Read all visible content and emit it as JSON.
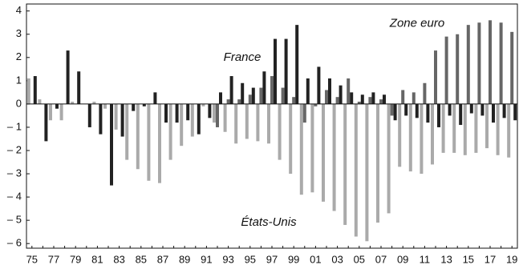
{
  "chart_data": {
    "type": "bar",
    "categories": [
      "75",
      null,
      "77",
      null,
      "79",
      null,
      "81",
      null,
      "83",
      null,
      "85",
      null,
      "87",
      null,
      "89",
      null,
      "91",
      null,
      "93",
      null,
      "95",
      null,
      "97",
      null,
      "99",
      null,
      "01",
      null,
      "03",
      null,
      "05",
      null,
      "07",
      null,
      "09",
      null,
      "11",
      null,
      "13",
      null,
      "15",
      null,
      "17",
      null,
      "19"
    ],
    "series": [
      {
        "name": "États-Unis",
        "color": "#aaaaaa",
        "values": [
          1.1,
          0.2,
          -0.7,
          -0.7,
          0.1,
          0.0,
          0.1,
          -0.2,
          -1.1,
          -2.4,
          -2.8,
          -3.3,
          -3.4,
          -2.4,
          -1.8,
          -1.4,
          -0.1,
          -0.8,
          -1.2,
          -1.7,
          -1.5,
          -1.6,
          -1.7,
          -2.4,
          -3.0,
          -3.9,
          -3.8,
          -4.2,
          -4.6,
          -5.2,
          -5.7,
          -5.9,
          -5.1,
          -4.7,
          -2.7,
          -2.9,
          -3.0,
          -2.6,
          -2.1,
          -2.1,
          -2.2,
          -2.1,
          -1.9,
          -2.2,
          -2.3
        ]
      },
      {
        "name": "Zone euro",
        "color": "#666666",
        "values": [
          null,
          null,
          null,
          null,
          null,
          null,
          null,
          null,
          null,
          null,
          null,
          null,
          null,
          null,
          null,
          null,
          null,
          -1.0,
          0.2,
          0.2,
          0.4,
          0.7,
          1.2,
          0.7,
          0.3,
          -0.8,
          -0.1,
          0.6,
          0.3,
          1.1,
          0.1,
          0.3,
          0.2,
          -0.5,
          0.6,
          0.5,
          0.9,
          2.3,
          2.9,
          3.0,
          3.4,
          3.5,
          3.6,
          3.5,
          3.1
        ]
      },
      {
        "name": "France",
        "color": "#222222",
        "values": [
          1.2,
          -1.6,
          -0.2,
          2.3,
          1.4,
          -1.0,
          -1.3,
          -3.5,
          -1.4,
          -0.3,
          -0.1,
          0.5,
          -0.8,
          -0.8,
          -0.7,
          -1.3,
          -0.6,
          0.5,
          1.2,
          0.9,
          0.7,
          1.4,
          2.8,
          2.8,
          3.4,
          1.1,
          1.6,
          1.1,
          0.8,
          0.5,
          0.4,
          0.5,
          0.4,
          -0.7,
          -0.5,
          -0.6,
          -0.8,
          -1.0,
          -0.5,
          -0.9,
          -0.4,
          -0.5,
          -0.8,
          -0.6,
          -0.7
        ]
      }
    ],
    "ylim": [
      -6.2,
      4.3
    ],
    "yticks": [
      4,
      3,
      2,
      1,
      0,
      {
        "value": -1,
        "label": "– 1"
      },
      {
        "value": -2,
        "label": "– 2"
      },
      {
        "value": -3,
        "label": "– 3"
      },
      {
        "value": -4,
        "label": "– 4"
      },
      {
        "value": -5,
        "label": "– 5"
      },
      {
        "value": -6,
        "label": "– 6"
      }
    ]
  }
}
